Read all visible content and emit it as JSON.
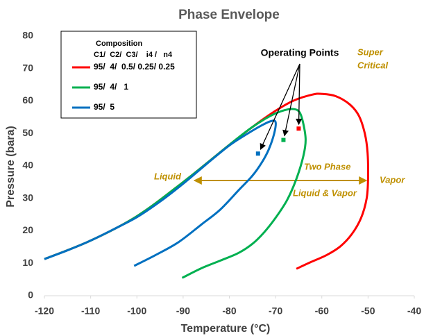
{
  "chart_data": {
    "type": "line",
    "title": "Phase Envelope",
    "x_label": "Temperature (°C)",
    "y_label": "Pressure (bara)",
    "xlim": [
      -120,
      -40
    ],
    "ylim": [
      0,
      80
    ],
    "xticks": [
      -120,
      -110,
      -100,
      -90,
      -80,
      -70,
      -60,
      -50,
      -40
    ],
    "yticks": [
      0,
      10,
      20,
      30,
      40,
      50,
      60,
      70,
      80
    ],
    "grid": false,
    "legend_title": "Composition",
    "legend_header": "C1/  C2/  C3/    i4 /   n4",
    "series": [
      {
        "name": "95/  4/  0.5/ 0.25/ 0.25",
        "color": "#ff0000",
        "x": [
          -120,
          -110,
          -100,
          -90,
          -80,
          -75,
          -70,
          -66,
          -62,
          -60,
          -57,
          -54,
          -52,
          -50.7,
          -50.1,
          -50,
          -50.3,
          -51.5,
          -53.5,
          -56,
          -59,
          -62.5,
          -65.5
        ],
        "values": [
          11.3,
          17,
          24.5,
          35,
          46.5,
          52,
          57,
          60.2,
          62,
          62.2,
          61.5,
          59,
          55.5,
          50,
          44,
          36,
          30,
          24,
          19,
          15.2,
          12.5,
          10.3,
          8.3
        ]
      },
      {
        "name": "95/  4/   1",
        "color": "#00b050",
        "x": [
          -120,
          -110,
          -100,
          -90,
          -80,
          -75,
          -71,
          -68,
          -66,
          -64.8,
          -64,
          -63.5,
          -64,
          -65.5,
          -67.5,
          -70,
          -72.5,
          -75,
          -78,
          -82,
          -86,
          -90.2
        ],
        "values": [
          11.3,
          17,
          24.5,
          35,
          46.5,
          52,
          55.5,
          57.2,
          57.5,
          56.5,
          53,
          48,
          43,
          36,
          29.5,
          24,
          19.5,
          16,
          13.2,
          10.8,
          8.5,
          5.5
        ]
      },
      {
        "name": "95/  5",
        "color": "#0070c0",
        "x": [
          -120,
          -115,
          -110,
          -105,
          -100,
          -95,
          -90,
          -85,
          -80,
          -76,
          -73,
          -71,
          -70,
          -70.3,
          -71.5,
          -73,
          -75,
          -78,
          -82,
          -86,
          -91,
          -96,
          -100.6
        ],
        "values": [
          11.3,
          14,
          17,
          20.5,
          24.2,
          29,
          34.5,
          40.5,
          46.3,
          50,
          52.5,
          53.8,
          53.5,
          50,
          45,
          41,
          37,
          32.5,
          26.5,
          22,
          16.5,
          12.5,
          9.2
        ]
      }
    ],
    "operating_points": {
      "label": "Operating Points",
      "x": [
        -65,
        -68.3,
        -73.8
      ],
      "values": [
        51.5,
        48,
        43.8
      ],
      "colors": [
        "#ff0000",
        "#00b050",
        "#0070c0"
      ]
    },
    "annotations": {
      "super": "Super",
      "critical": "Critical",
      "liquid": "Liquid",
      "two_phase": "Two Phase",
      "liquid_vapor": "Liquid & Vapor",
      "vapor": "Vapor"
    }
  }
}
